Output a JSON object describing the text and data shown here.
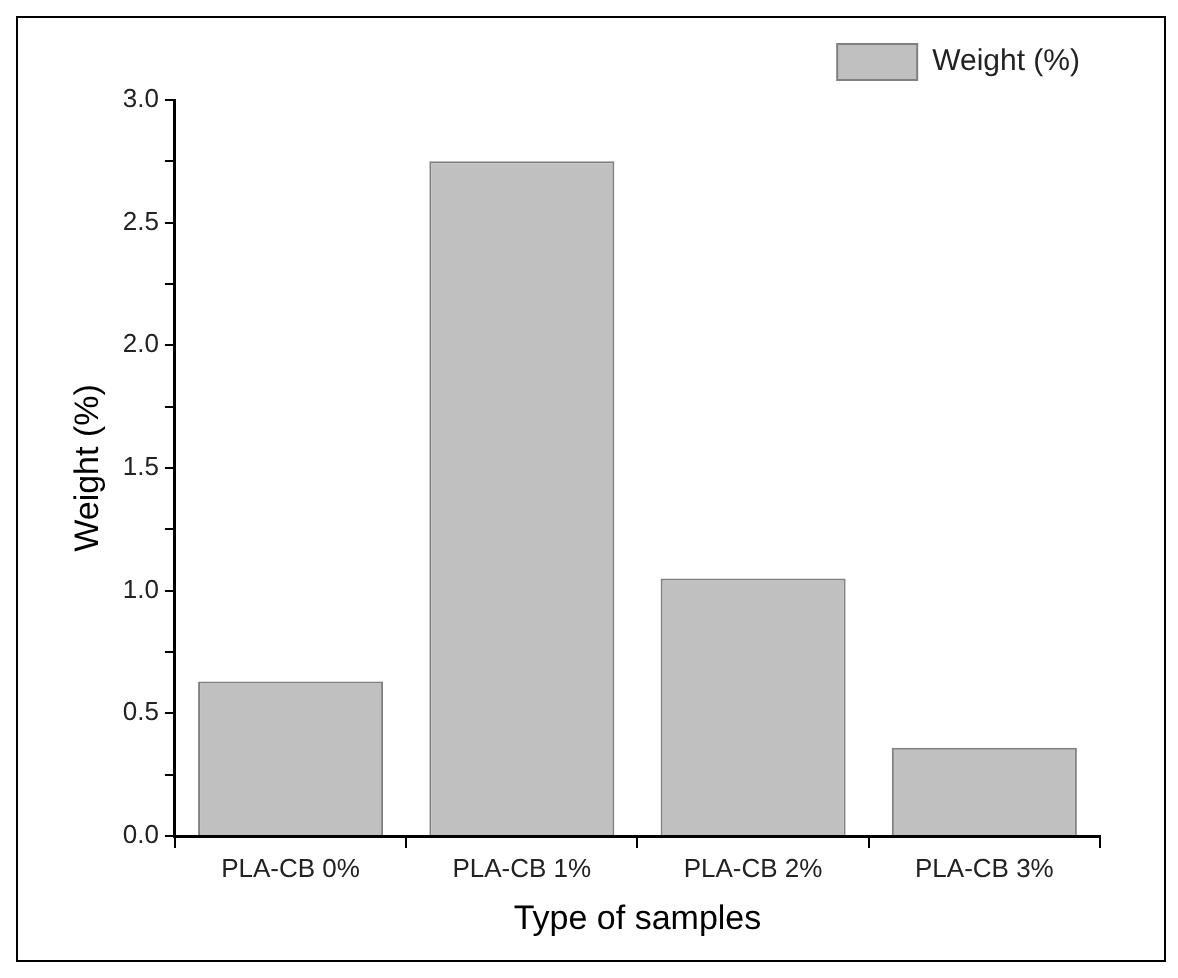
{
  "chart_data": {
    "type": "bar",
    "xlabel": "Type of samples",
    "ylabel": "Weight (%)",
    "categories": [
      "PLA-CB 0%",
      "PLA-CB 1%",
      "PLA-CB 2%",
      "PLA-CB 3%"
    ],
    "series": [
      {
        "name": "Weight (%)",
        "color": "#c0c0c0",
        "values": [
          0.63,
          2.75,
          1.05,
          0.36
        ]
      }
    ],
    "ylim": [
      0,
      3
    ],
    "yticks": [
      {
        "value": 0,
        "label": "0.0"
      },
      {
        "value": 0.25,
        "label": null
      },
      0.5,
      {
        "value": 0.75,
        "label": null
      },
      {
        "value": 1,
        "label": "1.0"
      },
      {
        "value": 1.25,
        "label": null
      },
      1.5,
      {
        "value": 1.75,
        "label": null
      },
      {
        "value": 2,
        "label": "2.0"
      },
      {
        "value": 2.25,
        "label": null
      },
      2.5,
      {
        "value": 2.75,
        "label": null
      },
      {
        "value": 3,
        "label": "3.0"
      }
    ],
    "legend": "top right",
    "grid": false
  }
}
